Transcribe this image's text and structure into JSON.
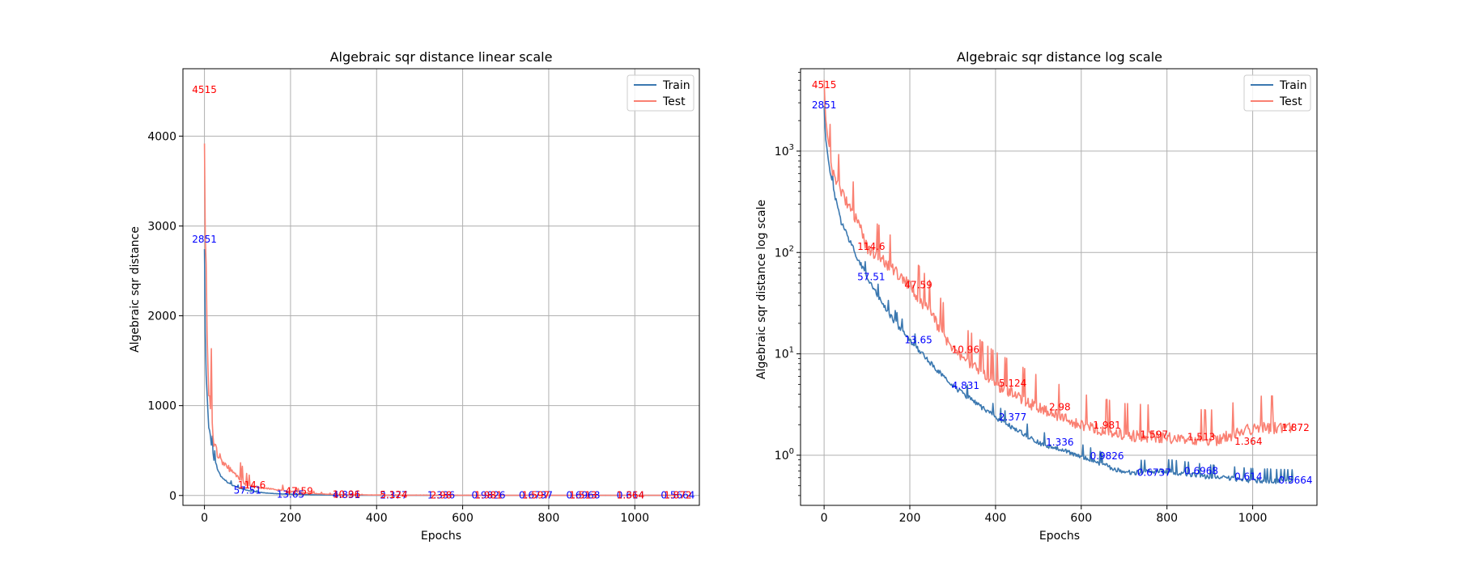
{
  "colors": {
    "train_line": "#3b78b0",
    "test_line": "#fa8072",
    "train_annotation": "#0000ff",
    "test_annotation": "#ff0000",
    "grid": "#b0b0b0"
  },
  "chart_data": [
    {
      "type": "line",
      "title": "Algebraic sqr distance linear scale",
      "xlabel": "Epochs",
      "ylabel": "Algebraic sqr distance",
      "yscale": "linear",
      "xlim": [
        -50,
        1150
      ],
      "ylim": [
        -110,
        4750
      ],
      "xticks": [
        0,
        200,
        400,
        600,
        800,
        1000
      ],
      "yticks": [
        0,
        1000,
        2000,
        3000,
        4000
      ],
      "grid": true,
      "legend_position": "top-right",
      "series": [
        {
          "name": "Train",
          "x": [
            0,
            2,
            5,
            10,
            15,
            20,
            30,
            40,
            60,
            80,
            100,
            130,
            160,
            200,
            250,
            300,
            400,
            500,
            600,
            700,
            800,
            900,
            1000,
            1095
          ],
          "values": [
            2851,
            1800,
            1200,
            800,
            600,
            450,
            300,
            200,
            130,
            85,
            57.51,
            35,
            22,
            13.65,
            8,
            4.831,
            2.377,
            1.336,
            0.9826,
            0.6737,
            0.6968,
            0.614,
            0.5664,
            0.55
          ]
        },
        {
          "name": "Test",
          "x": [
            0,
            2,
            5,
            10,
            15,
            20,
            30,
            40,
            60,
            80,
            100,
            130,
            160,
            200,
            250,
            300,
            400,
            500,
            600,
            700,
            800,
            900,
            1000,
            1095
          ],
          "values": [
            4515,
            3000,
            2000,
            1150,
            850,
            650,
            500,
            400,
            280,
            200,
            114.6,
            90,
            70,
            47.59,
            25,
            10.96,
            5.124,
            2.98,
            1.981,
            1.597,
            1.513,
            1.364,
            1.872,
            1.9
          ]
        }
      ],
      "annotations": [
        {
          "series": "Train",
          "x": 0,
          "y": 2851,
          "text": "2851"
        },
        {
          "series": "Train",
          "x": 100,
          "y": 57.51,
          "text": "57.51"
        },
        {
          "series": "Train",
          "x": 200,
          "y": 13.65,
          "text": "13.65"
        },
        {
          "series": "Train",
          "x": 330,
          "y": 4.831,
          "text": "4.831"
        },
        {
          "series": "Train",
          "x": 440,
          "y": 2.377,
          "text": "2.377"
        },
        {
          "series": "Train",
          "x": 550,
          "y": 1.336,
          "text": "1.336"
        },
        {
          "series": "Train",
          "x": 660,
          "y": 0.9826,
          "text": "0.9826"
        },
        {
          "series": "Train",
          "x": 770,
          "y": 0.6737,
          "text": "0.6737"
        },
        {
          "series": "Train",
          "x": 880,
          "y": 0.6968,
          "text": "0.6968"
        },
        {
          "series": "Train",
          "x": 990,
          "y": 0.614,
          "text": "0.614"
        },
        {
          "series": "Train",
          "x": 1100,
          "y": 0.5664,
          "text": "0.5664"
        },
        {
          "series": "Test",
          "x": 0,
          "y": 4515,
          "text": "4515"
        },
        {
          "series": "Test",
          "x": 110,
          "y": 114.6,
          "text": "114.6"
        },
        {
          "series": "Test",
          "x": 220,
          "y": 47.59,
          "text": "47.59"
        },
        {
          "series": "Test",
          "x": 330,
          "y": 10.96,
          "text": "10.96"
        },
        {
          "series": "Test",
          "x": 440,
          "y": 5.124,
          "text": "5.124"
        },
        {
          "series": "Test",
          "x": 550,
          "y": 2.98,
          "text": "2.98"
        },
        {
          "series": "Test",
          "x": 660,
          "y": 1.981,
          "text": "1.981"
        },
        {
          "series": "Test",
          "x": 770,
          "y": 1.597,
          "text": "1.597"
        },
        {
          "series": "Test",
          "x": 880,
          "y": 1.513,
          "text": "1.513"
        },
        {
          "series": "Test",
          "x": 990,
          "y": 1.364,
          "text": "1.364"
        },
        {
          "series": "Test",
          "x": 1100,
          "y": 1.872,
          "text": "1.872"
        }
      ]
    },
    {
      "type": "line",
      "title": "Algebraic sqr distance log scale",
      "xlabel": "Epochs",
      "ylabel": "Algebraic sqr distance log scale",
      "yscale": "log",
      "xlim": [
        -55,
        1150
      ],
      "ylim": [
        0.32,
        6500
      ],
      "xticks": [
        0,
        200,
        400,
        600,
        800,
        1000
      ],
      "yticks": [
        1,
        10,
        100,
        1000
      ],
      "grid": true,
      "legend_position": "top-right",
      "series": [
        {
          "name": "Train",
          "x": [
            0,
            2,
            5,
            10,
            15,
            20,
            30,
            40,
            60,
            80,
            100,
            130,
            160,
            200,
            250,
            300,
            400,
            500,
            600,
            700,
            800,
            900,
            1000,
            1095
          ],
          "values": [
            2851,
            1800,
            1200,
            800,
            600,
            450,
            300,
            200,
            130,
            85,
            57.51,
            35,
            22,
            13.65,
            8,
            4.831,
            2.377,
            1.336,
            0.9826,
            0.6737,
            0.6968,
            0.614,
            0.5664,
            0.55
          ]
        },
        {
          "name": "Test",
          "x": [
            0,
            2,
            5,
            10,
            15,
            20,
            30,
            40,
            60,
            80,
            100,
            130,
            160,
            200,
            250,
            300,
            400,
            500,
            600,
            700,
            800,
            900,
            1000,
            1095
          ],
          "values": [
            4515,
            3000,
            2000,
            1150,
            850,
            650,
            500,
            400,
            280,
            200,
            114.6,
            90,
            70,
            47.59,
            25,
            10.96,
            5.124,
            2.98,
            1.981,
            1.597,
            1.513,
            1.364,
            1.872,
            1.9
          ]
        }
      ],
      "annotations": [
        {
          "series": "Train",
          "x": 0,
          "y": 2851,
          "text": "2851"
        },
        {
          "series": "Train",
          "x": 110,
          "y": 57.51,
          "text": "57.51"
        },
        {
          "series": "Train",
          "x": 220,
          "y": 13.65,
          "text": "13.65"
        },
        {
          "series": "Train",
          "x": 330,
          "y": 4.831,
          "text": "4.831"
        },
        {
          "series": "Train",
          "x": 440,
          "y": 2.377,
          "text": "2.377"
        },
        {
          "series": "Train",
          "x": 550,
          "y": 1.336,
          "text": "1.336"
        },
        {
          "series": "Train",
          "x": 660,
          "y": 0.9826,
          "text": "0.9826"
        },
        {
          "series": "Train",
          "x": 770,
          "y": 0.6737,
          "text": "0.6737"
        },
        {
          "series": "Train",
          "x": 880,
          "y": 0.6968,
          "text": "0.6968"
        },
        {
          "series": "Train",
          "x": 990,
          "y": 0.614,
          "text": "0.614"
        },
        {
          "series": "Train",
          "x": 1100,
          "y": 0.5664,
          "text": "0.5664"
        },
        {
          "series": "Test",
          "x": 0,
          "y": 4515,
          "text": "4515"
        },
        {
          "series": "Test",
          "x": 110,
          "y": 114.6,
          "text": "114.6"
        },
        {
          "series": "Test",
          "x": 220,
          "y": 47.59,
          "text": "47.59"
        },
        {
          "series": "Test",
          "x": 330,
          "y": 10.96,
          "text": "10.96"
        },
        {
          "series": "Test",
          "x": 440,
          "y": 5.124,
          "text": "5.124"
        },
        {
          "series": "Test",
          "x": 550,
          "y": 2.98,
          "text": "2.98"
        },
        {
          "series": "Test",
          "x": 660,
          "y": 1.981,
          "text": "1.981"
        },
        {
          "series": "Test",
          "x": 770,
          "y": 1.597,
          "text": "1.597"
        },
        {
          "series": "Test",
          "x": 880,
          "y": 1.513,
          "text": "1.513"
        },
        {
          "series": "Test",
          "x": 990,
          "y": 1.364,
          "text": "1.364"
        },
        {
          "series": "Test",
          "x": 1100,
          "y": 1.872,
          "text": "1.872"
        }
      ]
    }
  ]
}
